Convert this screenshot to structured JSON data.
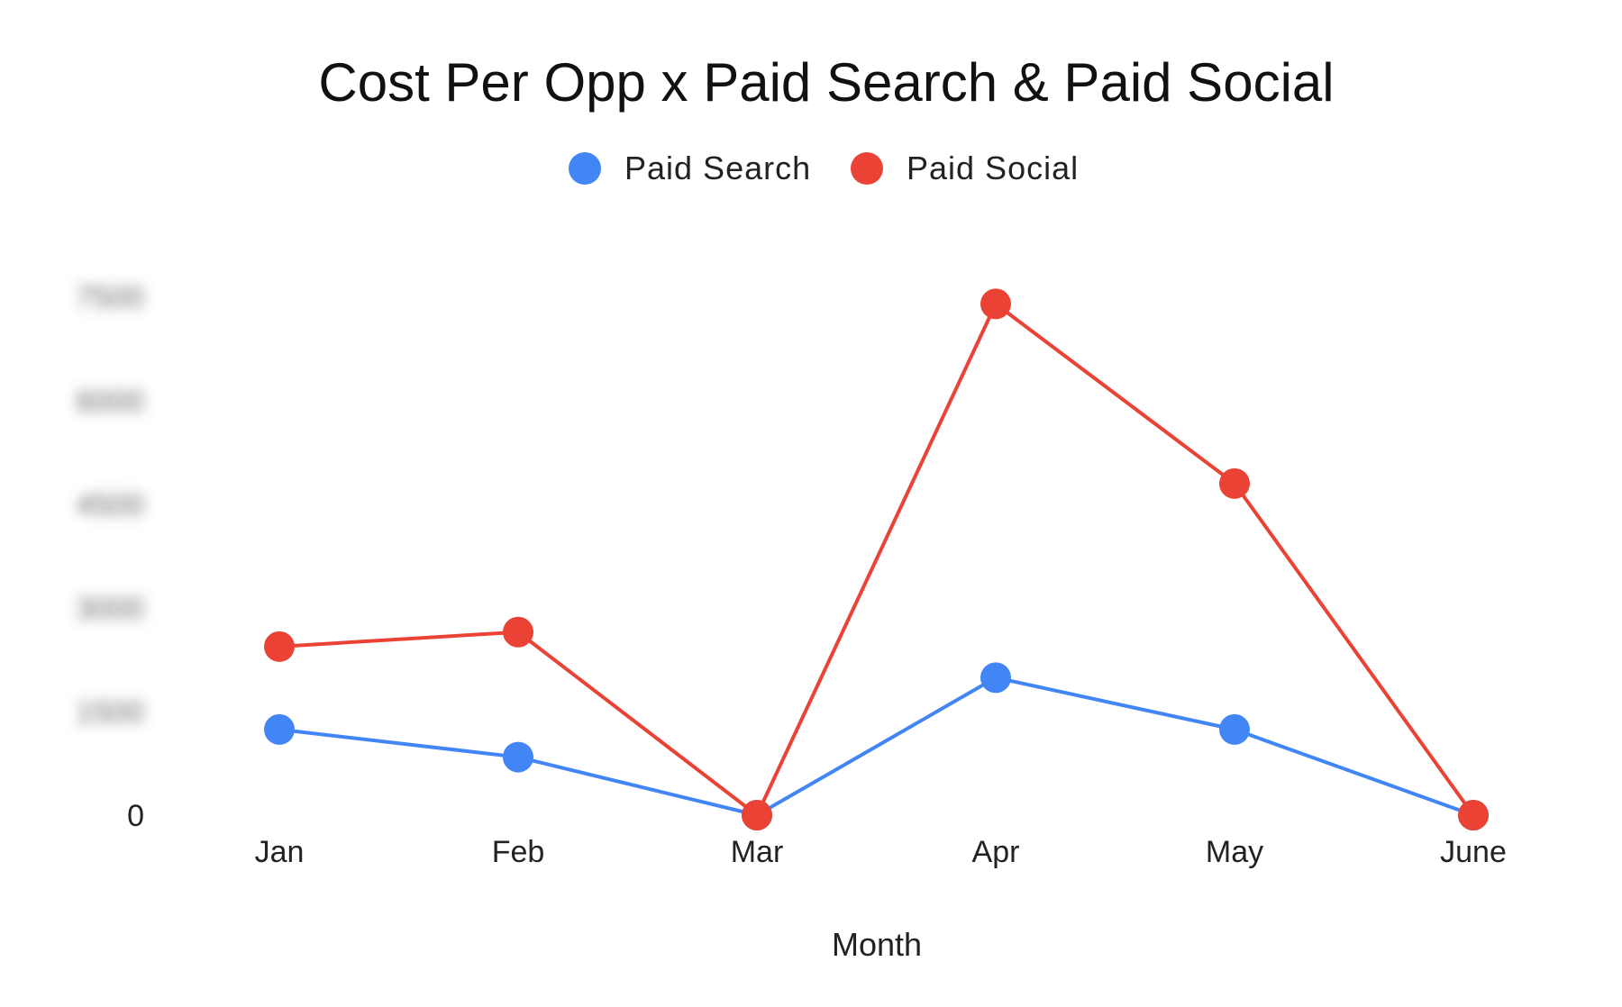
{
  "chart_data": {
    "type": "line",
    "title": "Cost Per Opp x Paid Search & Paid Social",
    "xlabel": "Month",
    "ylabel": "",
    "categories": [
      "Jan",
      "Feb",
      "Mar",
      "Apr",
      "May",
      "June"
    ],
    "series": [
      {
        "name": "Paid Search",
        "color": "#4285f4",
        "values": [
          1240,
          840,
          0,
          1990,
          1240,
          0
        ]
      },
      {
        "name": "Paid Social",
        "color": "#ea4335",
        "values": [
          2440,
          2650,
          0,
          7400,
          4800,
          0
        ]
      }
    ],
    "y_ticks": [
      "0",
      "1500",
      "3000",
      "4500",
      "6000",
      "7500"
    ],
    "y_ticks_visible": [
      "0"
    ],
    "y_ticks_obscured_note": "Non-zero y-axis tick labels are blurred in the original",
    "ylim": [
      0,
      8800
    ],
    "legend_position": "top-center",
    "grid": false
  }
}
